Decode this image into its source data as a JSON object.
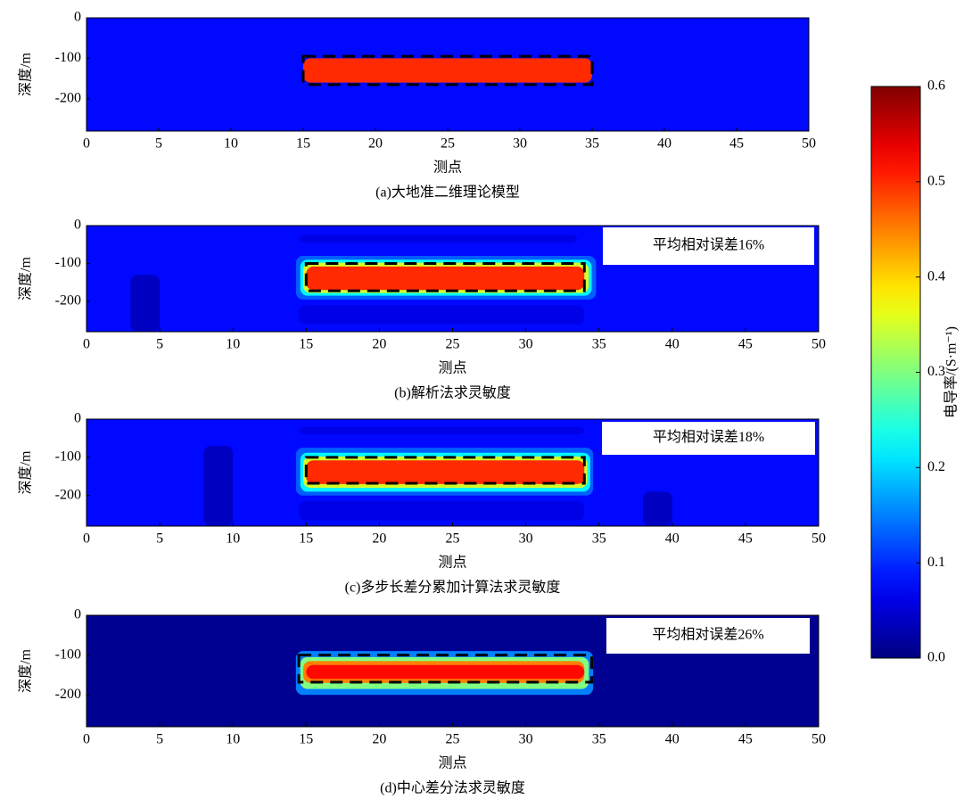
{
  "chart_data": [
    {
      "type": "heatmap",
      "title": "(a)大地准二维理论模型",
      "xlabel": "测点",
      "ylabel": "深度/m",
      "xlim": [
        0,
        50
      ],
      "ylim": [
        -280,
        0
      ],
      "xticks": [
        0,
        5,
        10,
        15,
        20,
        25,
        30,
        35,
        40,
        45,
        50
      ],
      "yticks": [
        0,
        -100,
        -200
      ],
      "background": 0.08,
      "cells": [
        {
          "x": [
            15,
            35
          ],
          "y": [
            -100,
            -160
          ],
          "value": 0.5
        }
      ],
      "outline": {
        "x": [
          15,
          35
        ],
        "y": [
          -95,
          -165
        ]
      }
    },
    {
      "type": "heatmap",
      "title": "(b)解析法求灵敏度",
      "xlabel": "测点",
      "ylabel": "深度/m",
      "annotation": "平均相对误差16%",
      "xlim": [
        0,
        50
      ],
      "ylim": [
        -280,
        0
      ],
      "xticks": [
        0,
        5,
        10,
        15,
        20,
        25,
        30,
        35,
        40,
        45,
        50
      ],
      "yticks": [
        0,
        -100,
        -200
      ],
      "background": 0.08,
      "cells": [
        {
          "x": [
            3,
            5
          ],
          "y": [
            -130,
            -280
          ],
          "value": 0.04
        },
        {
          "x": [
            14.5,
            33.5
          ],
          "y": [
            -25,
            -45
          ],
          "value": 0.06
        },
        {
          "x": [
            14.5,
            34
          ],
          "y": [
            -210,
            -260
          ],
          "value": 0.06
        },
        {
          "x": [
            14.3,
            34.8
          ],
          "y": [
            -80,
            -195
          ],
          "value": 0.13
        },
        {
          "x": [
            14.6,
            34.5
          ],
          "y": [
            -90,
            -185
          ],
          "value": 0.22
        },
        {
          "x": [
            14.8,
            34.3
          ],
          "y": [
            -98,
            -178
          ],
          "value": 0.35
        },
        {
          "x": [
            15,
            34
          ],
          "y": [
            -108,
            -170
          ],
          "value": 0.5
        }
      ],
      "outline": {
        "x": [
          15,
          34
        ],
        "y": [
          -100,
          -172
        ]
      }
    },
    {
      "type": "heatmap",
      "title": "(c)多步长差分累加计算法求灵敏度",
      "xlabel": "测点",
      "ylabel": "深度/m",
      "annotation": "平均相对误差18%",
      "xlim": [
        0,
        50
      ],
      "ylim": [
        -280,
        0
      ],
      "xticks": [
        0,
        5,
        10,
        15,
        20,
        25,
        30,
        35,
        40,
        45,
        50
      ],
      "yticks": [
        0,
        -100,
        -200
      ],
      "background": 0.08,
      "cells": [
        {
          "x": [
            8,
            10
          ],
          "y": [
            -70,
            -280
          ],
          "value": 0.04
        },
        {
          "x": [
            38,
            40
          ],
          "y": [
            -190,
            -280
          ],
          "value": 0.04
        },
        {
          "x": [
            14.5,
            34
          ],
          "y": [
            -20,
            -40
          ],
          "value": 0.06
        },
        {
          "x": [
            14.5,
            34
          ],
          "y": [
            -215,
            -265
          ],
          "value": 0.06
        },
        {
          "x": [
            14.3,
            34.6
          ],
          "y": [
            -75,
            -200
          ],
          "value": 0.13
        },
        {
          "x": [
            14.6,
            34.4
          ],
          "y": [
            -88,
            -190
          ],
          "value": 0.22
        },
        {
          "x": [
            14.8,
            34.2
          ],
          "y": [
            -98,
            -180
          ],
          "value": 0.35
        },
        {
          "x": [
            15,
            34
          ],
          "y": [
            -108,
            -170
          ],
          "value": 0.5
        }
      ],
      "outline": {
        "x": [
          15,
          34
        ],
        "y": [
          -100,
          -168
        ]
      }
    },
    {
      "type": "heatmap",
      "title": "(d)中心差分法求灵敏度",
      "xlabel": "测点",
      "ylabel": "深度/m",
      "annotation": "平均相对误差26%",
      "xlim": [
        0,
        50
      ],
      "ylim": [
        -280,
        0
      ],
      "xticks": [
        0,
        5,
        10,
        15,
        20,
        25,
        30,
        35,
        40,
        45,
        50
      ],
      "yticks": [
        0,
        -100,
        -200
      ],
      "background": 0.01,
      "cells": [
        {
          "x": [
            14.3,
            34.6
          ],
          "y": [
            -90,
            -200
          ],
          "value": 0.15
        },
        {
          "x": [
            14.6,
            34.3
          ],
          "y": [
            -105,
            -185
          ],
          "value": 0.3
        },
        {
          "x": [
            14.8,
            34
          ],
          "y": [
            -115,
            -170
          ],
          "value": 0.45
        },
        {
          "x": [
            15,
            34
          ],
          "y": [
            -125,
            -160
          ],
          "value": 0.52
        }
      ],
      "outline": {
        "x": [
          14.5,
          34.5
        ],
        "y": [
          -100,
          -168
        ]
      }
    }
  ],
  "colorbar": {
    "label": "电导率/(S·m⁻¹)",
    "lim": [
      0,
      0.6
    ],
    "ticks": [
      {
        "value": 0,
        "label": "0.0"
      },
      0.1,
      0.2,
      0.3,
      0.4,
      0.5,
      0.6
    ]
  }
}
